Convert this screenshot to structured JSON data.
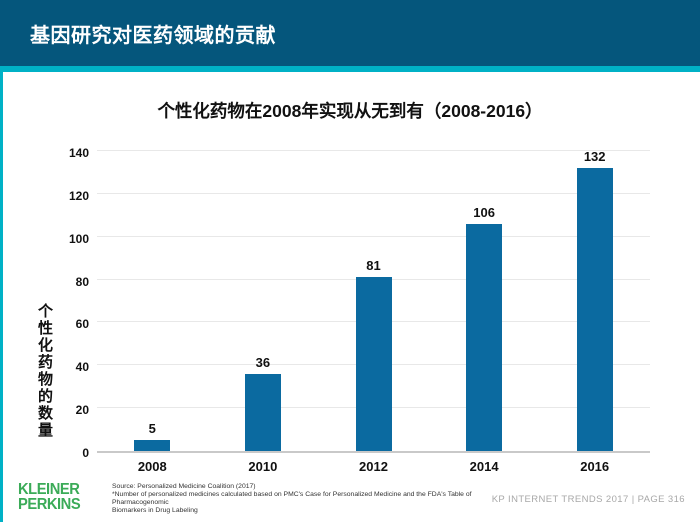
{
  "header": {
    "title": "基因研究对医药领域的贡献"
  },
  "chart_data": {
    "type": "bar",
    "title": "个性化药物在2008年实现从无到有（2008-2016）",
    "categories": [
      "2008",
      "2010",
      "2012",
      "2014",
      "2016"
    ],
    "values": [
      5,
      36,
      81,
      106,
      132
    ],
    "xlabel": "",
    "ylabel": "个性化药物的数量",
    "ylim": [
      0,
      140
    ],
    "yticks": [
      0,
      20,
      40,
      60,
      80,
      100,
      120,
      140
    ],
    "grid": true,
    "legend": "none",
    "bar_color": "#0b6aa0"
  },
  "footer": {
    "logo_line1": "KLEINER",
    "logo_line2": "PERKINS",
    "source_line1": "Source: Personalized Medicine Coalition (2017)",
    "source_line2": "*Number of personalized medicines calculated based on PMC's Case for Personalized Medicine and the FDA's Table of Pharmacogenomic",
    "source_line3": "Biomarkers in Drug Labeling",
    "trends_label": "KP INTERNET TRENDS 2017   |   PAGE 316"
  },
  "colors": {
    "header_bg": "#05567c",
    "accent": "#00b1c6",
    "bar": "#0b6aa0",
    "logo_green": "#3bab58",
    "gridline": "#e8e8e8",
    "footer_gray": "#a8a8a8"
  }
}
